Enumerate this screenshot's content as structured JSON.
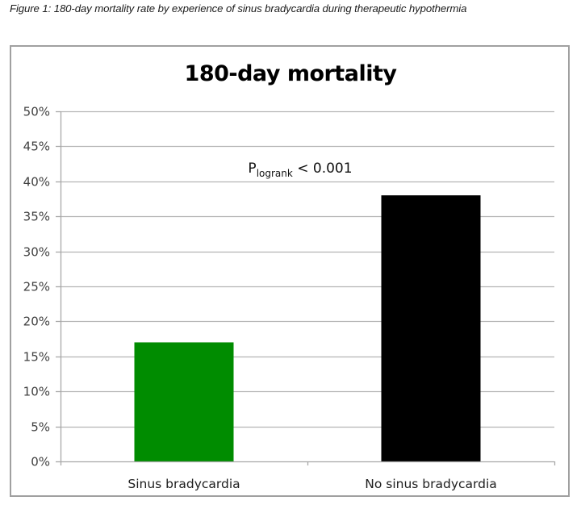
{
  "caption": "Figure 1: 180-day mortality rate by experience of sinus bradycardia during therapeutic hypothermia",
  "chart_data": {
    "type": "bar",
    "title": "180-day mortality",
    "categories": [
      "Sinus bradycardia",
      "No sinus bradycardia"
    ],
    "values": [
      17,
      38
    ],
    "value_unit": "%",
    "colors": [
      "#008c00",
      "#000000"
    ],
    "xlabel": "",
    "ylabel": "",
    "ylim": [
      0,
      50
    ],
    "yticks": [
      0,
      5,
      10,
      15,
      20,
      25,
      30,
      35,
      40,
      45,
      50
    ],
    "ytick_labels": [
      "0%",
      "5%",
      "10%",
      "15%",
      "20%",
      "25%",
      "30%",
      "35%",
      "40%",
      "45%",
      "50%"
    ],
    "grid": true,
    "legend": null,
    "annotations": [
      {
        "text_main": "P",
        "text_subscript": "logrank",
        "text_rest": " < 0.001"
      }
    ]
  }
}
